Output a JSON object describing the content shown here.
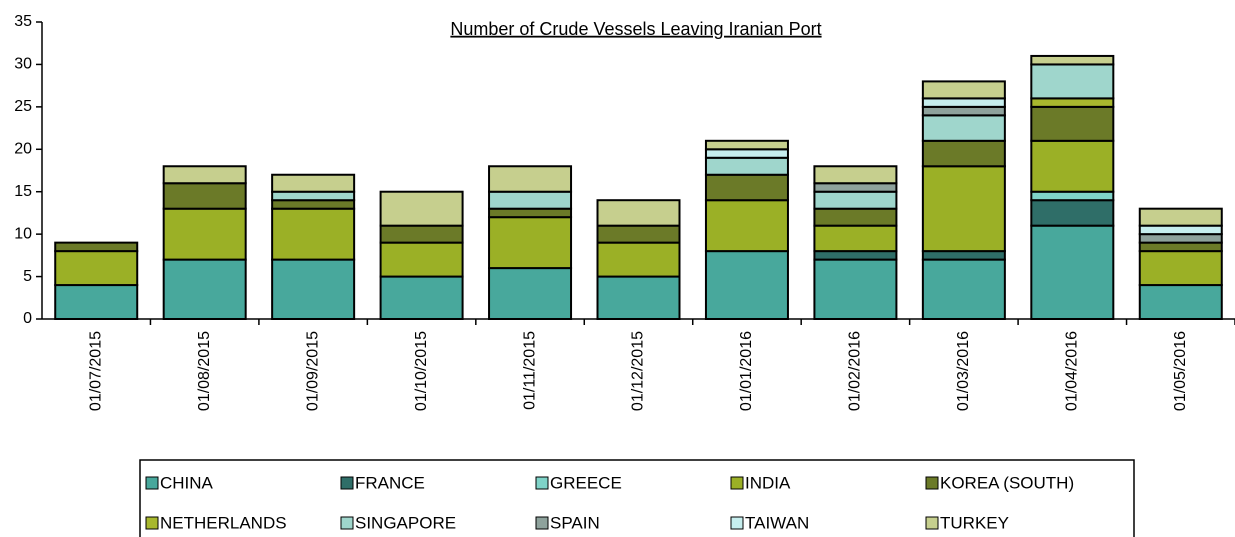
{
  "chart_data": {
    "type": "stacked_bar",
    "title": "Number of Crude Vessels Leaving Iranian Port",
    "categories": [
      "01/07/2015",
      "01/08/2015",
      "01/09/2015",
      "01/10/2015",
      "01/11/2015",
      "01/12/2015",
      "01/01/2016",
      "01/02/2016",
      "01/03/2016",
      "01/04/2016",
      "01/05/2016"
    ],
    "series": [
      {
        "name": "CHINA",
        "color": "#48a89c",
        "values": [
          4,
          7,
          7,
          5,
          6,
          5,
          8,
          7,
          7,
          11,
          4
        ]
      },
      {
        "name": "FRANCE",
        "color": "#2f6e68",
        "values": [
          0,
          0,
          0,
          0,
          0,
          0,
          0,
          1,
          1,
          3,
          0
        ]
      },
      {
        "name": "GREECE",
        "color": "#7fd3c8",
        "values": [
          0,
          0,
          0,
          0,
          0,
          0,
          0,
          0,
          0,
          1,
          0
        ]
      },
      {
        "name": "INDIA",
        "color": "#9bb026",
        "values": [
          4,
          6,
          6,
          4,
          6,
          4,
          6,
          3,
          10,
          6,
          4
        ]
      },
      {
        "name": "KOREA (SOUTH)",
        "color": "#6b7a28",
        "values": [
          1,
          3,
          1,
          2,
          1,
          2,
          3,
          2,
          3,
          4,
          1
        ]
      },
      {
        "name": "NETHERLANDS",
        "color": "#a8b82e",
        "values": [
          0,
          0,
          0,
          0,
          0,
          0,
          0,
          0,
          0,
          1,
          0
        ]
      },
      {
        "name": "SINGAPORE",
        "color": "#9fd6cc",
        "values": [
          0,
          0,
          1,
          0,
          2,
          0,
          2,
          2,
          3,
          4,
          0
        ]
      },
      {
        "name": "SPAIN",
        "color": "#8ea29c",
        "values": [
          0,
          0,
          0,
          0,
          0,
          0,
          0,
          1,
          1,
          0,
          1
        ]
      },
      {
        "name": "TAIWAN",
        "color": "#c6eeee",
        "values": [
          0,
          0,
          0,
          0,
          0,
          0,
          1,
          0,
          1,
          0,
          1
        ]
      },
      {
        "name": "TURKEY",
        "color": "#c6cf8e",
        "values": [
          0,
          2,
          2,
          4,
          3,
          3,
          1,
          2,
          2,
          1,
          2
        ]
      }
    ],
    "ylim": [
      0,
      35
    ],
    "yticks": [
      0,
      5,
      10,
      15,
      20,
      25,
      30,
      35
    ]
  }
}
